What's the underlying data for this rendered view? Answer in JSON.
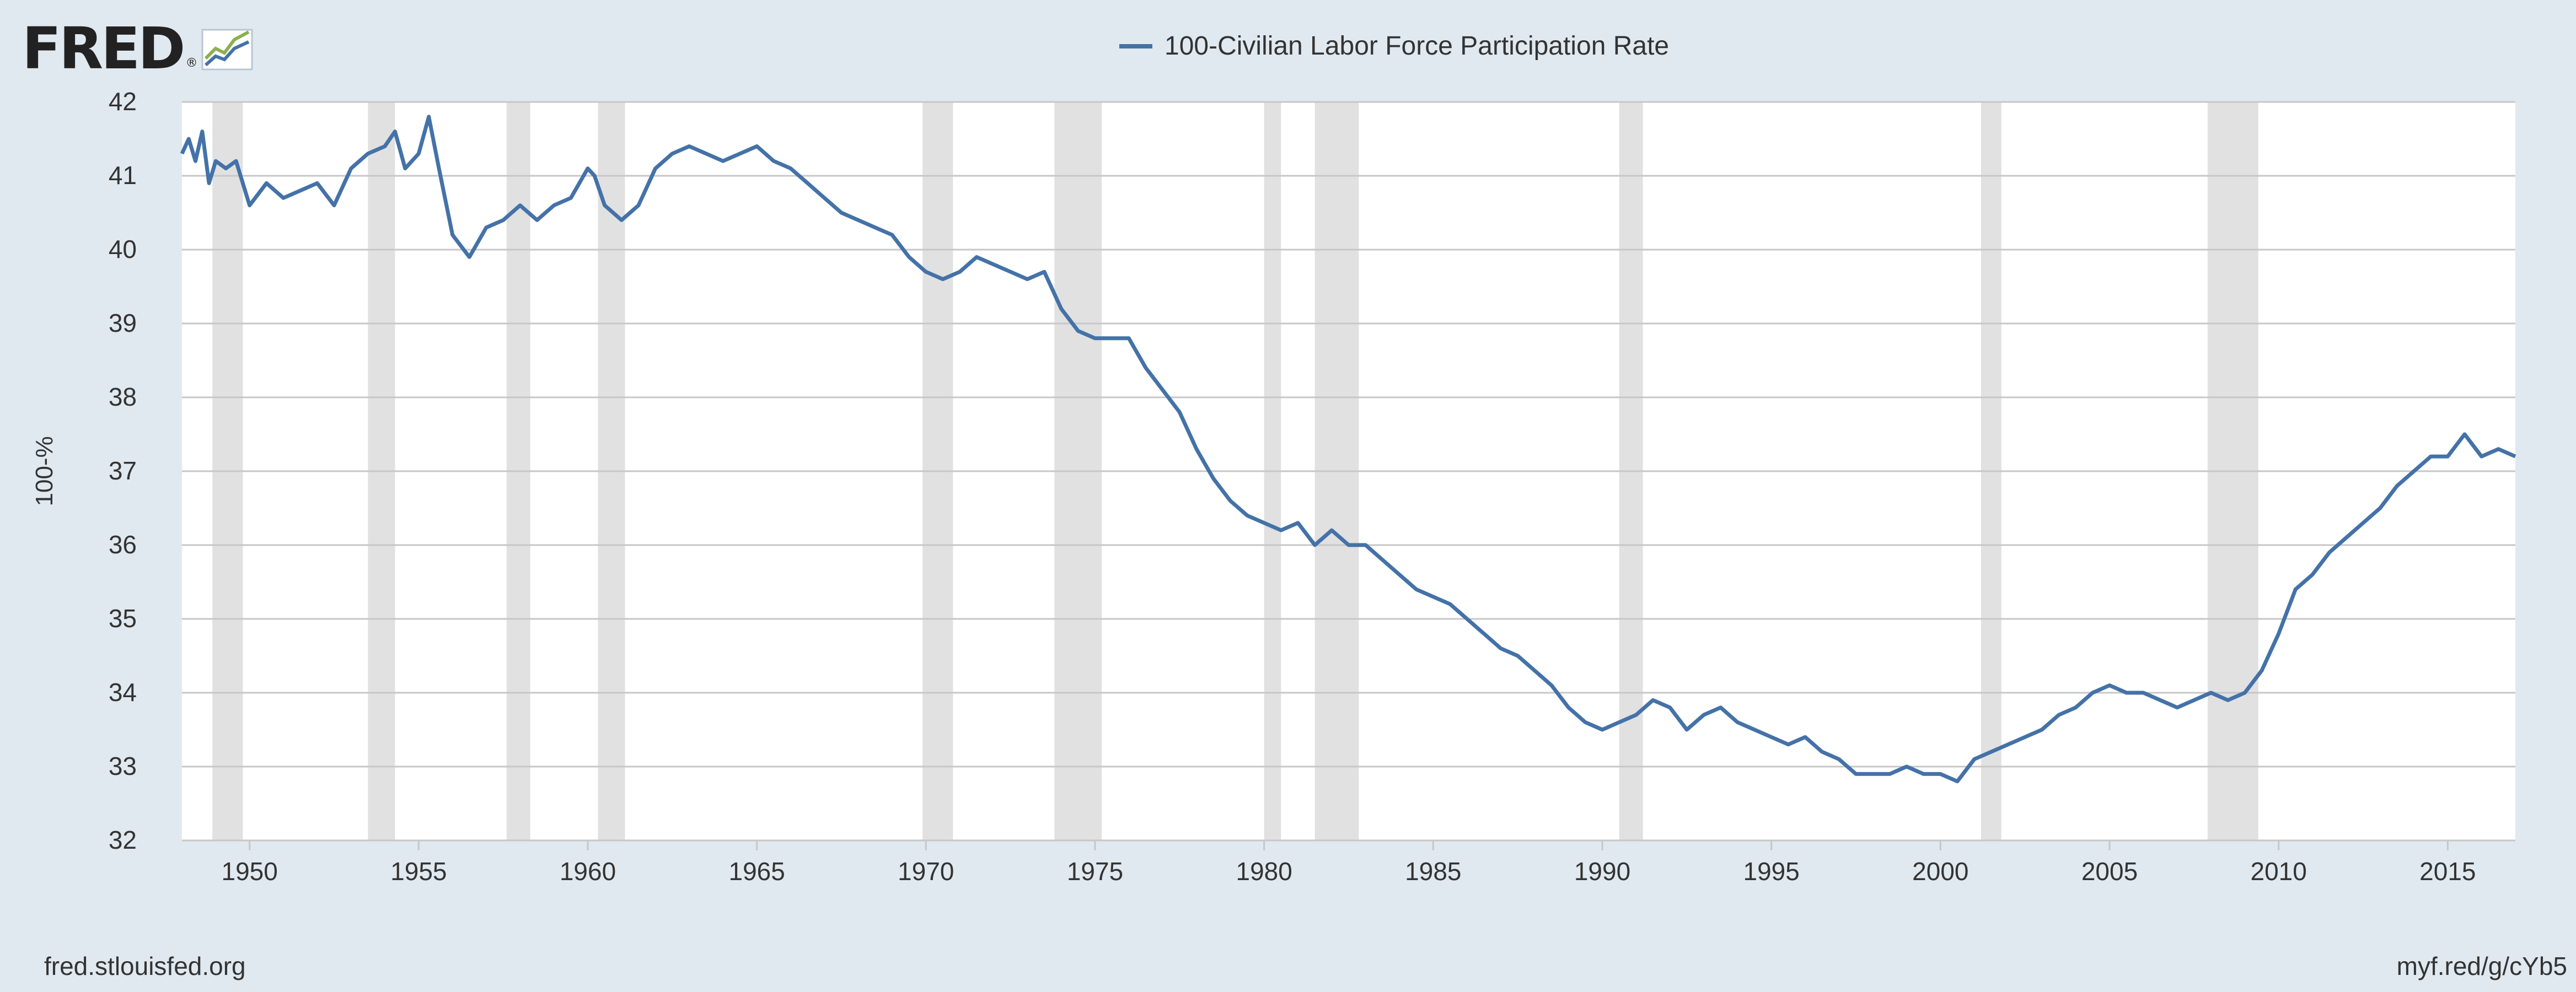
{
  "header": {
    "logo_text": "FRED",
    "logo_reg": "®",
    "logo_icon": "fred-chart-logo-icon"
  },
  "footer": {
    "source_url": "fred.stlouisfed.org",
    "short_link": "myf.red/g/cYb5"
  },
  "colors": {
    "background": "#e1e9f0",
    "plot_background": "#ffffff",
    "series_line": "#4472a8",
    "recession_band": "#e1e1e1",
    "gridline": "#c7c7c7"
  },
  "chart_data": {
    "type": "line",
    "title": "",
    "ylabel": "100-%",
    "xlabel": "",
    "ylim": [
      32,
      42
    ],
    "yticks": [
      32,
      33,
      34,
      35,
      36,
      37,
      38,
      39,
      40,
      41,
      42
    ],
    "xlim": [
      1948.0,
      2017.0
    ],
    "xticks": [
      1950,
      1955,
      1960,
      1965,
      1970,
      1975,
      1980,
      1985,
      1990,
      1995,
      2000,
      2005,
      2010,
      2015
    ],
    "grid": "horizontal",
    "legend": {
      "placement": "top-center"
    },
    "recessions": [
      [
        1948.9,
        1949.8
      ],
      [
        1953.5,
        1954.3
      ],
      [
        1957.6,
        1958.3
      ],
      [
        1960.3,
        1961.1
      ],
      [
        1969.9,
        1970.8
      ],
      [
        1973.8,
        1975.2
      ],
      [
        1980.0,
        1980.5
      ],
      [
        1981.5,
        1982.8
      ],
      [
        1990.5,
        1991.2
      ],
      [
        2001.2,
        2001.8
      ],
      [
        2007.9,
        2009.4
      ]
    ],
    "series": [
      {
        "name": "100-Civilian Labor Force Participation Rate",
        "x": [
          1948.0,
          1948.2,
          1948.4,
          1948.6,
          1948.8,
          1949.0,
          1949.3,
          1949.6,
          1950.0,
          1950.5,
          1951.0,
          1951.5,
          1952.0,
          1952.5,
          1953.0,
          1953.5,
          1954.0,
          1954.3,
          1954.6,
          1955.0,
          1955.3,
          1955.6,
          1956.0,
          1956.5,
          1957.0,
          1957.5,
          1958.0,
          1958.5,
          1959.0,
          1959.5,
          1960.0,
          1960.2,
          1960.5,
          1961.0,
          1961.5,
          1962.0,
          1962.5,
          1963.0,
          1963.5,
          1964.0,
          1964.5,
          1965.0,
          1965.5,
          1966.0,
          1966.5,
          1967.0,
          1967.5,
          1968.0,
          1968.5,
          1969.0,
          1969.5,
          1970.0,
          1970.5,
          1971.0,
          1971.5,
          1972.0,
          1972.5,
          1973.0,
          1973.5,
          1974.0,
          1974.5,
          1975.0,
          1975.5,
          1976.0,
          1976.5,
          1977.0,
          1977.5,
          1978.0,
          1978.5,
          1979.0,
          1979.5,
          1980.0,
          1980.5,
          1981.0,
          1981.5,
          1982.0,
          1982.5,
          1983.0,
          1983.5,
          1984.0,
          1984.5,
          1985.0,
          1985.5,
          1986.0,
          1986.5,
          1987.0,
          1987.5,
          1988.0,
          1988.5,
          1989.0,
          1989.5,
          1990.0,
          1990.5,
          1991.0,
          1991.5,
          1992.0,
          1992.5,
          1993.0,
          1993.5,
          1994.0,
          1994.5,
          1995.0,
          1995.5,
          1996.0,
          1996.5,
          1997.0,
          1997.5,
          1998.0,
          1998.5,
          1999.0,
          1999.5,
          2000.0,
          2000.5,
          2001.0,
          2001.5,
          2002.0,
          2002.5,
          2003.0,
          2003.5,
          2004.0,
          2004.5,
          2005.0,
          2005.5,
          2006.0,
          2006.5,
          2007.0,
          2007.5,
          2008.0,
          2008.5,
          2009.0,
          2009.5,
          2010.0,
          2010.5,
          2011.0,
          2011.5,
          2012.0,
          2012.5,
          2013.0,
          2013.5,
          2014.0,
          2014.5,
          2015.0,
          2015.5,
          2016.0,
          2016.5,
          2017.0
        ],
        "values": [
          41.3,
          41.5,
          41.2,
          41.6,
          40.9,
          41.2,
          41.1,
          41.2,
          40.6,
          40.9,
          40.7,
          40.8,
          40.9,
          40.6,
          41.1,
          41.3,
          41.4,
          41.6,
          41.1,
          41.3,
          41.8,
          41.1,
          40.2,
          39.9,
          40.3,
          40.4,
          40.6,
          40.4,
          40.6,
          40.7,
          41.1,
          41.0,
          40.6,
          40.4,
          40.6,
          41.1,
          41.3,
          41.4,
          41.3,
          41.2,
          41.3,
          41.4,
          41.2,
          41.1,
          40.9,
          40.7,
          40.5,
          40.4,
          40.3,
          40.2,
          39.9,
          39.7,
          39.6,
          39.7,
          39.9,
          39.8,
          39.7,
          39.6,
          39.7,
          39.2,
          38.9,
          38.8,
          38.8,
          38.8,
          38.4,
          38.1,
          37.8,
          37.3,
          36.9,
          36.6,
          36.4,
          36.3,
          36.2,
          36.3,
          36.0,
          36.2,
          36.0,
          36.0,
          35.8,
          35.6,
          35.4,
          35.3,
          35.2,
          35.0,
          34.8,
          34.6,
          34.5,
          34.3,
          34.1,
          33.8,
          33.6,
          33.5,
          33.6,
          33.7,
          33.9,
          33.8,
          33.5,
          33.7,
          33.8,
          33.6,
          33.5,
          33.4,
          33.3,
          33.4,
          33.2,
          33.1,
          32.9,
          32.9,
          32.9,
          33.0,
          32.9,
          32.9,
          32.8,
          33.1,
          33.2,
          33.3,
          33.4,
          33.5,
          33.7,
          33.8,
          34.0,
          34.1,
          34.0,
          34.0,
          33.9,
          33.8,
          33.9,
          34.0,
          33.9,
          34.0,
          34.3,
          34.8,
          35.4,
          35.6,
          35.9,
          36.1,
          36.3,
          36.5,
          36.8,
          37.0,
          37.2,
          37.2,
          37.5,
          37.2,
          37.3,
          37.2
        ]
      }
    ]
  }
}
